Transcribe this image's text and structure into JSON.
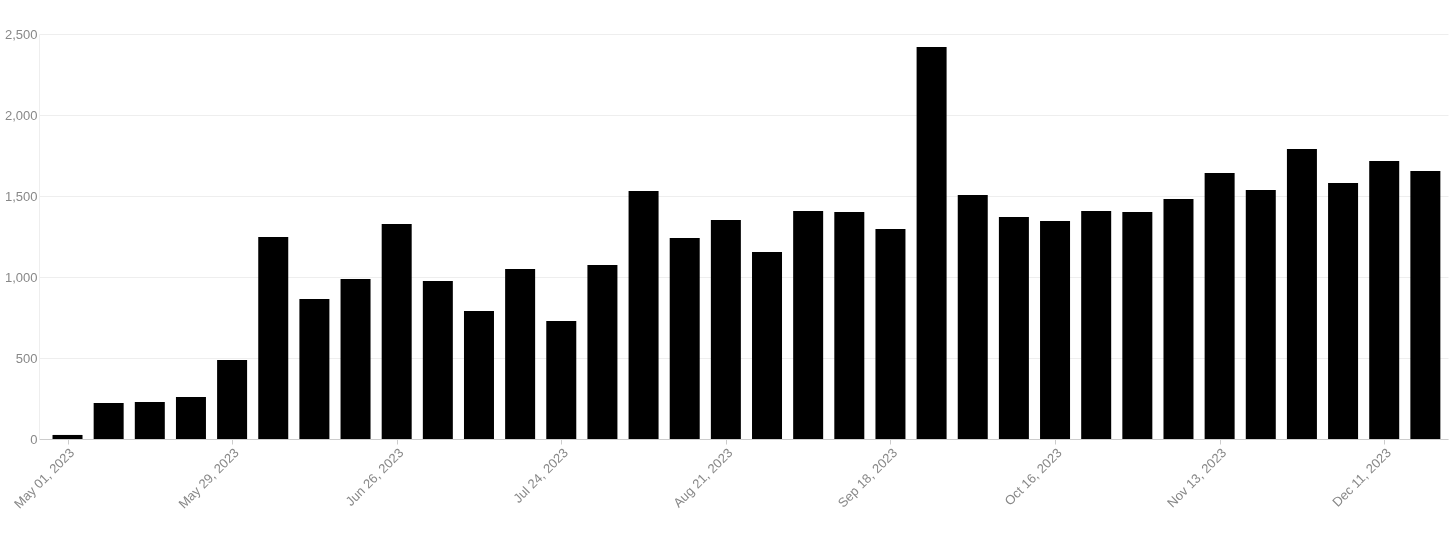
{
  "chart_data": {
    "type": "bar",
    "x": [
      "2023-05-01",
      "2023-05-08",
      "2023-05-15",
      "2023-05-22",
      "2023-05-29",
      "2023-06-05",
      "2023-06-12",
      "2023-06-19",
      "2023-06-26",
      "2023-07-03",
      "2023-07-10",
      "2023-07-17",
      "2023-07-24",
      "2023-07-31",
      "2023-08-07",
      "2023-08-14",
      "2023-08-21",
      "2023-08-28",
      "2023-09-04",
      "2023-09-11",
      "2023-09-18",
      "2023-09-25",
      "2023-10-02",
      "2023-10-09",
      "2023-10-16",
      "2023-10-23",
      "2023-10-30",
      "2023-11-06",
      "2023-11-13",
      "2023-11-20",
      "2023-11-27",
      "2023-12-04",
      "2023-12-11",
      "2023-12-18"
    ],
    "series": [
      {
        "color": "#000000",
        "values": [
          25,
          222,
          228,
          259,
          488,
          1247,
          864,
          988,
          1327,
          975,
          790,
          1049,
          728,
          1074,
          1531,
          1241,
          1352,
          1154,
          1407,
          1401,
          1296,
          2420,
          1506,
          1370,
          1346,
          1407,
          1401,
          1481,
          1642,
          1537,
          1790,
          1580,
          1716,
          1654
        ]
      }
    ],
    "xlim": [
      "2023-04-27",
      "2023-12-21"
    ],
    "xticks": [
      {
        "value": "2023-05-01",
        "label": "May 01, 2023"
      },
      {
        "value": "2023-05-29",
        "label": "May 29, 2023"
      },
      {
        "value": "2023-06-26",
        "label": "Jun 26, 2023"
      },
      {
        "value": "2023-07-24",
        "label": "Jul 24, 2023"
      },
      {
        "value": "2023-08-21",
        "label": "Aug 21, 2023"
      },
      {
        "value": "2023-09-18",
        "label": "Sep 18, 2023"
      },
      {
        "value": "2023-10-16",
        "label": "Oct 16, 2023"
      },
      {
        "value": "2023-11-13",
        "label": "Nov 13, 2023"
      },
      {
        "value": "2023-12-11",
        "label": "Dec 11, 2023"
      }
    ],
    "ylim": [
      0,
      2500
    ],
    "yticks": [
      {
        "value": 0,
        "label": "0"
      },
      {
        "value": 500,
        "label": "500"
      },
      {
        "value": 1000,
        "label": "1,000"
      },
      {
        "value": 1500,
        "label": "1,500"
      },
      {
        "value": 2000,
        "label": "2,000"
      },
      {
        "value": 2500,
        "label": "2,500"
      }
    ],
    "grid": "y"
  }
}
